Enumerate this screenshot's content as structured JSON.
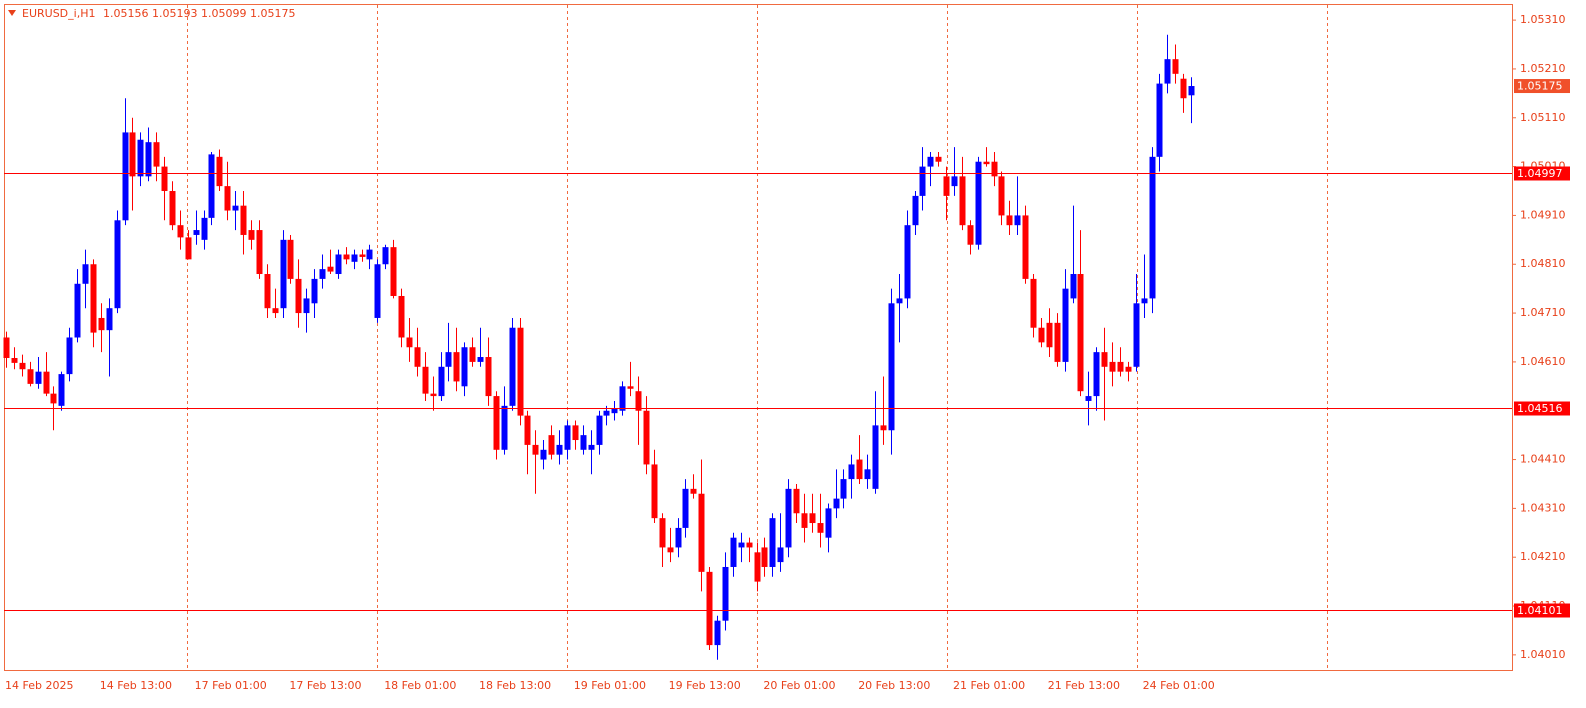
{
  "chart_data": {
    "type": "candlestick",
    "title": "EURUSD_i,H1",
    "up_color": "#0000ff",
    "down_color": "#ff0000",
    "level_color": "#ff0000",
    "categories": [
      "14 Feb 2025",
      null,
      null,
      null,
      null,
      null,
      null,
      null,
      null,
      null,
      null,
      null,
      "14 Feb 13:00",
      null,
      null,
      null,
      null,
      null,
      null,
      null,
      null,
      null,
      null,
      null,
      "17 Feb 01:00",
      null,
      null,
      null,
      null,
      null,
      null,
      null,
      null,
      null,
      null,
      null,
      "17 Feb 13:00",
      null,
      null,
      null,
      null,
      null,
      null,
      null,
      null,
      null,
      null,
      null,
      "18 Feb 01:00",
      null,
      null,
      null,
      null,
      null,
      null,
      null,
      null,
      null,
      null,
      null,
      "18 Feb 13:00",
      null,
      null,
      null,
      null,
      null,
      null,
      null,
      null,
      null,
      null,
      null,
      "19 Feb 01:00",
      null,
      null,
      null,
      null,
      null,
      null,
      null,
      null,
      null,
      null,
      null,
      "19 Feb 13:00",
      null,
      null,
      null,
      null,
      null,
      null,
      null,
      null,
      null,
      null,
      null,
      "20 Feb 01:00",
      null,
      null,
      null,
      null,
      null,
      null,
      null,
      null,
      null,
      null,
      null,
      "20 Feb 13:00",
      null,
      null,
      null,
      null,
      null,
      null,
      null,
      null,
      null,
      null,
      null,
      "21 Feb 01:00",
      null,
      null,
      null,
      null,
      null,
      null,
      null,
      null,
      null,
      null,
      null,
      "21 Feb 13:00",
      null,
      null,
      null,
      null,
      null,
      null,
      null,
      null,
      null,
      null,
      null,
      "24 Feb 01:00",
      null,
      null,
      null,
      null,
      null,
      null
    ],
    "open": [
      1.0466,
      1.04618,
      1.04608,
      1.04595,
      1.04565,
      1.0459,
      1.04545,
      1.0452,
      1.04585,
      1.0466,
      1.0477,
      1.0481,
      1.047,
      1.04675,
      1.0472,
      1.049,
      1.0508,
      1.0499,
      1.0499,
      1.0506,
      1.0501,
      1.0496,
      1.0489,
      1.04865,
      1.0487,
      1.0486,
      1.04905,
      1.0503,
      1.0497,
      1.0492,
      1.0493,
      1.0488,
      1.0488,
      1.0479,
      1.0472,
      1.0472,
      1.0486,
      1.0478,
      1.0471,
      1.0473,
      1.0478,
      1.04805,
      1.0479,
      1.0483,
      1.04815,
      1.0483,
      1.0482,
      1.047,
      1.0481,
      1.04845,
      1.04745,
      1.0466,
      1.0464,
      1.046,
      1.04545,
      1.0454,
      1.046,
      1.0463,
      1.0456,
      1.0464,
      1.0461,
      1.0462,
      1.0454,
      1.0443,
      1.0452,
      1.0468,
      1.045,
      1.0444,
      1.0441,
      1.0446,
      1.0442,
      1.0443,
      1.0448,
      1.0443,
      1.0443,
      1.0444,
      1.045,
      1.04505,
      1.0451,
      1.0456,
      1.0455,
      1.0451,
      1.044,
      1.0429,
      1.0423,
      1.0423,
      1.0427,
      1.0435,
      1.0434,
      1.0418,
      1.0403,
      1.0408,
      1.0419,
      1.0423,
      1.0424,
      1.0422,
      1.0423,
      1.0419,
      1.042,
      1.0423,
      1.0435,
      1.043,
      1.043,
      1.0428,
      1.0425,
      1.0431,
      1.0433,
      1.0437,
      1.0441,
      1.0437,
      1.0435,
      1.0448,
      1.0447,
      1.0473,
      1.0474,
      1.0489,
      1.0495,
      1.0501,
      1.0503,
      1.0499,
      1.0497,
      1.0499,
      1.0489,
      1.0485,
      1.0502,
      1.0502,
      1.0499,
      1.0491,
      1.0489,
      1.0491,
      1.0478,
      1.0468,
      1.0469,
      1.0469,
      1.0461,
      1.0474,
      1.0479,
      1.0453,
      1.0454,
      1.0463,
      1.0461,
      1.0461,
      1.046,
      1.046,
      1.0473,
      1.0474,
      1.0503,
      1.0518,
      1.0523,
      1.0519,
      1.05156
    ],
    "high": [
      1.04672,
      1.0464,
      1.04625,
      1.0461,
      1.0462,
      1.0463,
      1.0456,
      1.0459,
      1.0468,
      1.048,
      1.0484,
      1.0482,
      1.0473,
      1.0474,
      1.0492,
      1.0515,
      1.0511,
      1.0508,
      1.0509,
      1.0508,
      1.0503,
      1.0498,
      1.0492,
      1.0488,
      1.0492,
      1.0492,
      1.0504,
      1.05045,
      1.0502,
      1.0496,
      1.0496,
      1.049,
      1.049,
      1.0481,
      1.0476,
      1.0488,
      1.0487,
      1.0482,
      1.0476,
      1.048,
      1.0483,
      1.0484,
      1.0484,
      1.04845,
      1.0484,
      1.0484,
      1.0485,
      1.0482,
      1.0485,
      1.0486,
      1.0476,
      1.047,
      1.0468,
      1.0463,
      1.0458,
      1.0463,
      1.0469,
      1.0468,
      1.0465,
      1.0466,
      1.0468,
      1.0466,
      1.0455,
      1.0456,
      1.047,
      1.047,
      1.0451,
      1.0447,
      1.0445,
      1.0448,
      1.0447,
      1.0449,
      1.0449,
      1.0448,
      1.0447,
      1.0451,
      1.0452,
      1.0453,
      1.0457,
      1.0461,
      1.0458,
      1.0454,
      1.0443,
      1.043,
      1.0427,
      1.0429,
      1.0437,
      1.0438,
      1.0441,
      1.0419,
      1.0409,
      1.0422,
      1.0426,
      1.0426,
      1.0425,
      1.0424,
      1.0425,
      1.043,
      1.043,
      1.0437,
      1.0436,
      1.0434,
      1.0434,
      1.0434,
      1.0432,
      1.0439,
      1.0439,
      1.0442,
      1.0446,
      1.0442,
      1.0455,
      1.0458,
      1.0476,
      1.0479,
      1.0492,
      1.0496,
      1.0505,
      1.0504,
      1.0504,
      1.0501,
      1.0505,
      1.0503,
      1.049,
      1.0503,
      1.0505,
      1.0504,
      1.05,
      1.0494,
      1.0499,
      1.0493,
      1.0479,
      1.047,
      1.0472,
      1.0471,
      1.048,
      1.0493,
      1.0488,
      1.0459,
      1.0464,
      1.0468,
      1.0465,
      1.0464,
      1.0461,
      1.0479,
      1.0483,
      1.0505,
      1.052,
      1.0528,
      1.0526,
      1.052,
      1.05193
    ],
    "low": [
      1.04598,
      1.04595,
      1.0458,
      1.0456,
      1.04555,
      1.0454,
      1.0447,
      1.0451,
      1.0457,
      1.0465,
      1.0472,
      1.0464,
      1.0463,
      1.0458,
      1.0471,
      1.0489,
      1.0492,
      1.0497,
      1.0498,
      1.0498,
      1.049,
      1.0488,
      1.0484,
      1.0482,
      1.0485,
      1.0484,
      1.0489,
      1.0496,
      1.049,
      1.0488,
      1.0483,
      1.0484,
      1.0478,
      1.047,
      1.047,
      1.047,
      1.0477,
      1.0468,
      1.0467,
      1.047,
      1.0476,
      1.0479,
      1.0478,
      1.0481,
      1.048,
      1.04815,
      1.048,
      1.0469,
      1.048,
      1.0474,
      1.0464,
      1.0461,
      1.0458,
      1.0453,
      1.0451,
      1.0453,
      1.0457,
      1.0455,
      1.0454,
      1.046,
      1.046,
      1.0452,
      1.0441,
      1.0442,
      1.0451,
      1.0448,
      1.0438,
      1.0434,
      1.0439,
      1.0441,
      1.044,
      1.0441,
      1.0443,
      1.0442,
      1.0438,
      1.0442,
      1.0448,
      1.0449,
      1.045,
      1.0454,
      1.0444,
      1.0438,
      1.0428,
      1.0419,
      1.042,
      1.0421,
      1.0425,
      1.0433,
      1.0414,
      1.0402,
      1.04,
      1.0406,
      1.0417,
      1.042,
      1.042,
      1.0414,
      1.0417,
      1.0417,
      1.0418,
      1.0421,
      1.0428,
      1.0424,
      1.0426,
      1.0423,
      1.0422,
      1.0429,
      1.0431,
      1.0433,
      1.0436,
      1.0435,
      1.0434,
      1.0444,
      1.0442,
      1.0465,
      1.0472,
      1.0487,
      1.0492,
      1.0497,
      1.0501,
      1.049,
      1.0495,
      1.0488,
      1.0483,
      1.0484,
      1.0501,
      1.0497,
      1.0489,
      1.0487,
      1.0487,
      1.0477,
      1.0466,
      1.0464,
      1.0462,
      1.046,
      1.0459,
      1.0473,
      1.0454,
      1.0448,
      1.0451,
      1.0449,
      1.0456,
      1.0458,
      1.0457,
      1.0459,
      1.047,
      1.0471,
      1.05,
      1.0516,
      1.0518,
      1.0512,
      1.05099
    ],
    "close": [
      1.04618,
      1.04608,
      1.04595,
      1.04565,
      1.0459,
      1.04545,
      1.04525,
      1.04585,
      1.0466,
      1.0477,
      1.0481,
      1.0467,
      1.04675,
      1.0472,
      1.049,
      1.0508,
      1.0499,
      1.05065,
      1.0506,
      1.0501,
      1.0496,
      1.0489,
      1.04865,
      1.0482,
      1.0488,
      1.04905,
      1.05035,
      1.0497,
      1.0492,
      1.0493,
      1.0487,
      1.0486,
      1.0479,
      1.0472,
      1.0471,
      1.0486,
      1.0478,
      1.0471,
      1.0474,
      1.0478,
      1.048,
      1.04795,
      1.0483,
      1.0482,
      1.0483,
      1.04825,
      1.0484,
      1.0481,
      1.04845,
      1.04745,
      1.0466,
      1.0464,
      1.046,
      1.04545,
      1.0454,
      1.046,
      1.0463,
      1.0457,
      1.0464,
      1.0461,
      1.0462,
      1.0454,
      1.0443,
      1.0452,
      1.0468,
      1.045,
      1.0444,
      1.0442,
      1.0443,
      1.0442,
      1.0444,
      1.0448,
      1.0445,
      1.0446,
      1.0444,
      1.045,
      1.0451,
      1.04515,
      1.0456,
      1.04555,
      1.0451,
      1.044,
      1.0429,
      1.0423,
      1.0422,
      1.0427,
      1.0435,
      1.0434,
      1.0418,
      1.0403,
      1.0408,
      1.0419,
      1.0425,
      1.0424,
      1.0423,
      1.0416,
      1.0419,
      1.0429,
      1.0423,
      1.0435,
      1.043,
      1.0427,
      1.0428,
      1.0426,
      1.0431,
      1.0433,
      1.0437,
      1.044,
      1.0437,
      1.0439,
      1.0448,
      1.0447,
      1.0473,
      1.0474,
      1.0489,
      1.0495,
      1.0501,
      1.0503,
      1.0502,
      1.0495,
      1.0499,
      1.0489,
      1.0485,
      1.0502,
      1.05015,
      1.0499,
      1.0491,
      1.0489,
      1.0491,
      1.0478,
      1.0468,
      1.0465,
      1.0464,
      1.0461,
      1.0476,
      1.0479,
      1.0455,
      1.0454,
      1.0463,
      1.046,
      1.0459,
      1.0459,
      1.0459,
      1.0473,
      1.0474,
      1.0503,
      1.0518,
      1.0523,
      1.052,
      1.0515,
      1.05175
    ],
    "levels": [
      1.04997,
      1.04516,
      1.04101
    ],
    "ylim": [
      1.03979,
      1.05343
    ],
    "yticks": [
      {
        "value": 1.0531,
        "label": "1.05310"
      },
      {
        "value": 1.0521,
        "label": "1.05210"
      },
      {
        "value": 1.0511,
        "label": "1.05110"
      },
      {
        "value": 1.0501,
        "label": "1.05010"
      },
      {
        "value": 1.0491,
        "label": "1.04910"
      },
      {
        "value": 1.0481,
        "label": "1.04810"
      },
      {
        "value": 1.0471,
        "label": "1.04710"
      },
      {
        "value": 1.0461,
        "label": "1.04610"
      },
      {
        "value": 1.0441,
        "label": "1.04410"
      },
      {
        "value": 1.0431,
        "label": "1.04310"
      },
      {
        "value": 1.0421,
        "label": "1.04210"
      },
      {
        "value": 1.0411,
        "label": "1.04110"
      },
      {
        "value": 1.0401,
        "label": "1.04010"
      }
    ]
  }
}
